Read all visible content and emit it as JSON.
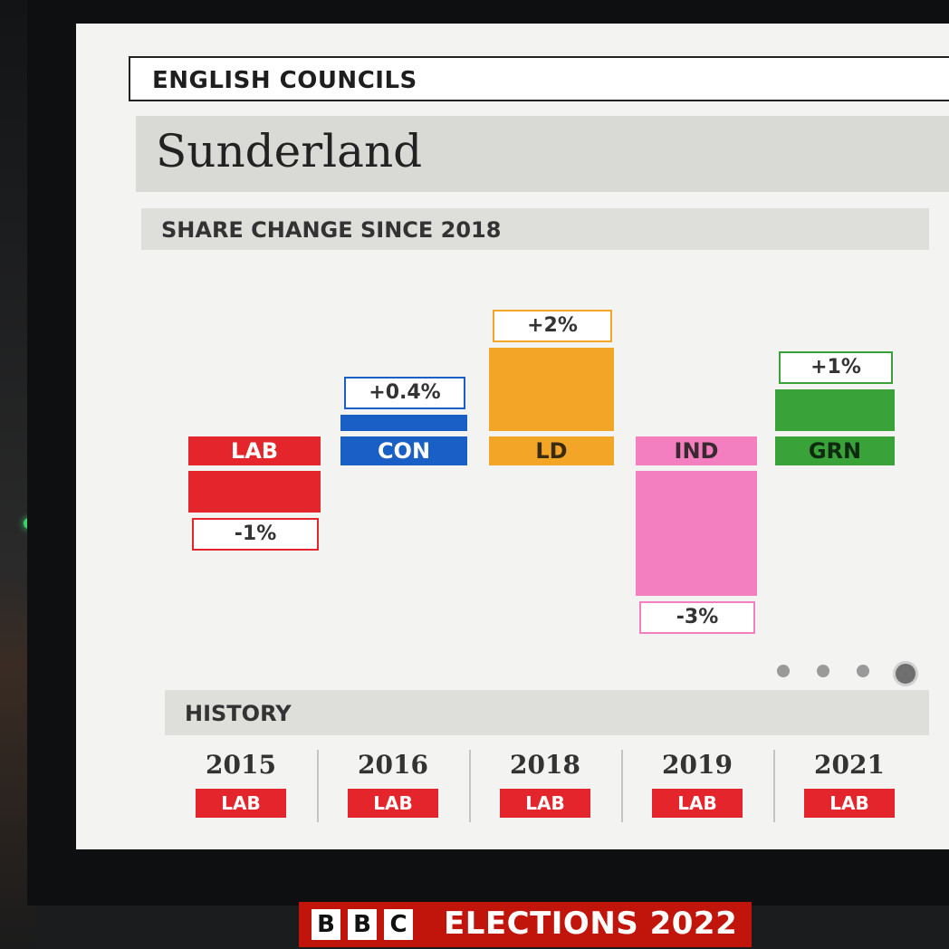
{
  "section": "ENGLISH COUNCILS",
  "council": "Sunderland",
  "subtitle": "SHARE CHANGE SINCE 2018",
  "chart_data": {
    "type": "bar",
    "title": "SHARE CHANGE SINCE 2018",
    "categories": [
      "LAB",
      "CON",
      "LD",
      "IND",
      "GRN"
    ],
    "values": [
      -1,
      0.4,
      2,
      -3,
      1
    ],
    "value_labels": [
      "-1%",
      "+0.4%",
      "+2%",
      "-3%",
      "+1%"
    ],
    "colors": [
      "#e4262c",
      "#1a5fc6",
      "#f2a527",
      "#f47fc0",
      "#39a33a"
    ],
    "label_text_colors": [
      "#ffffff",
      "#ffffff",
      "#3a2a10",
      "#3a2a30",
      "#0f2a10"
    ]
  },
  "pager": {
    "count": 4,
    "active": 3
  },
  "history": {
    "label": "HISTORY",
    "items": [
      {
        "year": "2015",
        "winner": "LAB"
      },
      {
        "year": "2016",
        "winner": "LAB"
      },
      {
        "year": "2018",
        "winner": "LAB"
      },
      {
        "year": "2019",
        "winner": "LAB"
      },
      {
        "year": "2021",
        "winner": "LAB"
      }
    ],
    "winner_color": "#e4262c"
  },
  "branding": {
    "letters": [
      "B",
      "B",
      "C"
    ],
    "text": "ELECTIONS 2022"
  }
}
